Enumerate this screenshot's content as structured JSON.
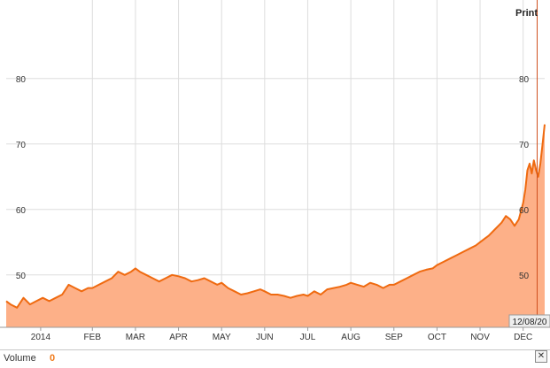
{
  "toolbar": {
    "print_label": "Print"
  },
  "footer": {
    "volume_label": "Volume",
    "volume_value": "0",
    "close_glyph": "✕"
  },
  "date_badge": "12/08/20",
  "colors": {
    "line": "#ef6a10",
    "area": "#fdb088",
    "grid": "#dddddd",
    "cursor": "#d05020",
    "background": "#ffffff"
  },
  "chart_data": {
    "type": "area",
    "title": "",
    "xlabel": "",
    "ylabel": "",
    "ylim": [
      42,
      92
    ],
    "y_ticks": [
      50,
      60,
      70,
      80
    ],
    "y_tick_labels_left": [
      "50",
      "60",
      "70",
      "80"
    ],
    "y_tick_labels_right": [
      "50",
      "60",
      "70",
      "80"
    ],
    "x_ticks": [
      {
        "label": "2014",
        "x": 0.8
      },
      {
        "label": "FEB",
        "x": 2
      },
      {
        "label": "MAR",
        "x": 3
      },
      {
        "label": "APR",
        "x": 4
      },
      {
        "label": "MAY",
        "x": 5
      },
      {
        "label": "JUN",
        "x": 6
      },
      {
        "label": "JUL",
        "x": 7
      },
      {
        "label": "AUG",
        "x": 8
      },
      {
        "label": "SEP",
        "x": 9
      },
      {
        "label": "OCT",
        "x": 10
      },
      {
        "label": "NOV",
        "x": 11
      },
      {
        "label": "DEC",
        "x": 12
      }
    ],
    "xlim": [
      0.0,
      12.5
    ],
    "grid": true,
    "series": [
      {
        "x": [
          0.0,
          0.1,
          0.25,
          0.4,
          0.55,
          0.7,
          0.85,
          1.0,
          1.15,
          1.3,
          1.45,
          1.6,
          1.75,
          1.9,
          2.0,
          2.15,
          2.3,
          2.45,
          2.6,
          2.75,
          2.9,
          3.0,
          3.1,
          3.25,
          3.4,
          3.55,
          3.7,
          3.85,
          4.0,
          4.15,
          4.3,
          4.45,
          4.6,
          4.75,
          4.9,
          5.0,
          5.15,
          5.3,
          5.45,
          5.6,
          5.75,
          5.9,
          6.0,
          6.15,
          6.3,
          6.45,
          6.6,
          6.75,
          6.9,
          7.0,
          7.15,
          7.3,
          7.45,
          7.6,
          7.75,
          7.9,
          8.0,
          8.15,
          8.3,
          8.45,
          8.6,
          8.75,
          8.9,
          9.0,
          9.15,
          9.3,
          9.45,
          9.6,
          9.75,
          9.9,
          10.0,
          10.15,
          10.3,
          10.45,
          10.6,
          10.75,
          10.9,
          11.0,
          11.1,
          11.2,
          11.35,
          11.5,
          11.6,
          11.7,
          11.8,
          11.9,
          12.0,
          12.05,
          12.1,
          12.15,
          12.2,
          12.25,
          12.3,
          12.35,
          12.4,
          12.45,
          12.5
        ],
        "values": [
          46.0,
          45.5,
          45.0,
          46.5,
          45.5,
          46.0,
          46.5,
          46.0,
          46.5,
          47.0,
          48.5,
          48.0,
          47.5,
          48.0,
          48.0,
          48.5,
          49.0,
          49.5,
          50.5,
          50.0,
          50.5,
          51.0,
          50.5,
          50.0,
          49.5,
          49.0,
          49.5,
          50.0,
          49.8,
          49.5,
          49.0,
          49.2,
          49.5,
          49.0,
          48.5,
          48.8,
          48.0,
          47.5,
          47.0,
          47.2,
          47.5,
          47.8,
          47.5,
          47.0,
          47.0,
          46.8,
          46.5,
          46.8,
          47.0,
          46.8,
          47.5,
          47.0,
          47.8,
          48.0,
          48.2,
          48.5,
          48.8,
          48.5,
          48.2,
          48.8,
          48.5,
          48.0,
          48.5,
          48.5,
          49.0,
          49.5,
          50.0,
          50.5,
          50.8,
          51.0,
          51.5,
          52.0,
          52.5,
          53.0,
          53.5,
          54.0,
          54.5,
          55.0,
          55.5,
          56.0,
          57.0,
          58.0,
          59.0,
          58.5,
          57.5,
          58.5,
          61.0,
          63.0,
          66.0,
          67.0,
          65.5,
          67.5,
          66.0,
          65.0,
          67.0,
          70.0,
          73.0
        ]
      }
    ]
  }
}
